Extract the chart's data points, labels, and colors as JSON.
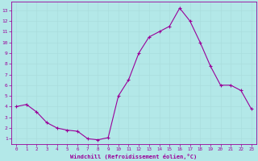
{
  "x": [
    0,
    1,
    2,
    3,
    4,
    5,
    6,
    7,
    8,
    9,
    10,
    11,
    12,
    13,
    14,
    15,
    16,
    17,
    18,
    19,
    20,
    21,
    22,
    23
  ],
  "y": [
    4.0,
    4.2,
    3.5,
    2.5,
    2.0,
    1.8,
    1.7,
    1.0,
    0.9,
    1.1,
    5.0,
    6.5,
    9.0,
    10.5,
    11.0,
    11.5,
    13.2,
    12.0,
    10.0,
    7.8,
    6.0,
    6.0,
    5.5,
    3.8
  ],
  "line_color": "#990099",
  "marker_color": "#990099",
  "bg_color": "#b3e8e8",
  "grid_color": "#aadddd",
  "xlabel": "Windchill (Refroidissement éolien,°C)",
  "xlabel_color": "#990099",
  "ylabel_ticks": [
    1,
    2,
    3,
    4,
    5,
    6,
    7,
    8,
    9,
    10,
    11,
    12,
    13
  ],
  "xtick_labels": [
    "0",
    "1",
    "2",
    "3",
    "4",
    "5",
    "6",
    "7",
    "8",
    "9",
    "10",
    "11",
    "12",
    "13",
    "14",
    "15",
    "16",
    "17",
    "18",
    "19",
    "20",
    "21",
    "22",
    "23"
  ],
  "xlim": [
    -0.5,
    23.5
  ],
  "ylim": [
    0.5,
    13.8
  ],
  "figsize": [
    3.2,
    2.0
  ],
  "dpi": 100
}
